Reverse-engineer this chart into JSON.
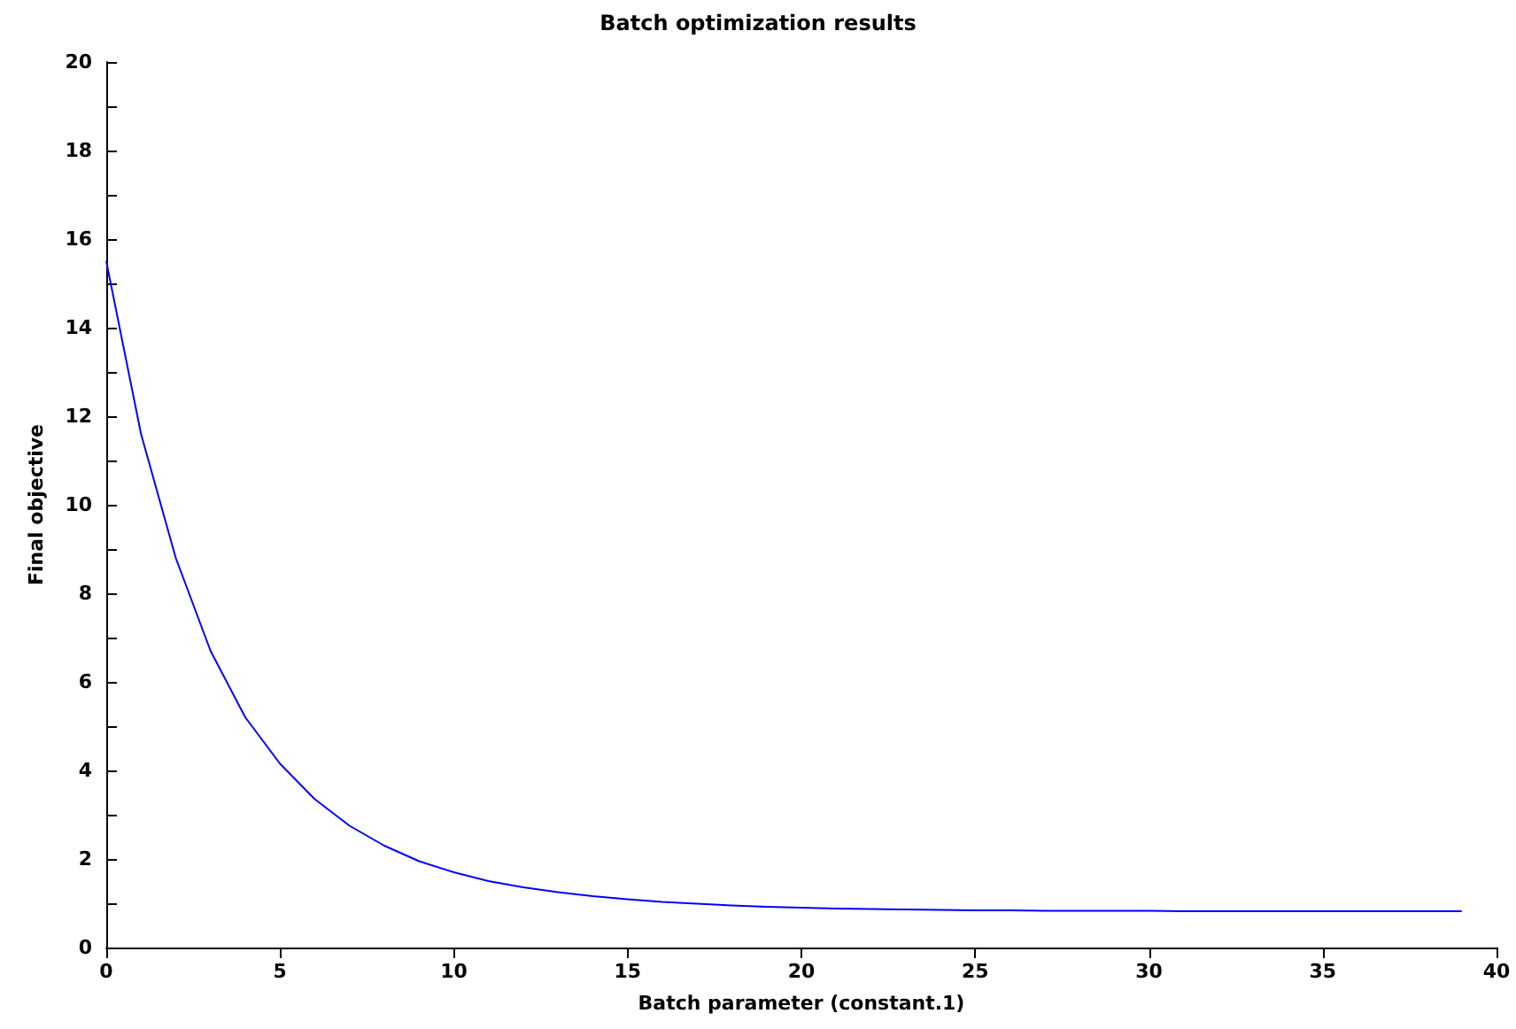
{
  "chart_data": {
    "type": "line",
    "title": "Batch optimization results",
    "xlabel": "Batch parameter (constant.1)",
    "ylabel": "Final objective",
    "x": [
      0,
      1,
      2,
      3,
      4,
      5,
      6,
      7,
      8,
      9,
      10,
      11,
      12,
      13,
      14,
      15,
      16,
      17,
      18,
      19,
      20,
      21,
      22,
      23,
      24,
      25,
      26,
      27,
      28,
      29,
      30,
      31,
      32,
      33,
      34,
      35,
      36,
      37,
      38,
      39
    ],
    "series": [
      {
        "color": "#0000ff",
        "values": [
          15.5,
          11.6,
          8.8,
          6.7,
          5.2,
          4.15,
          3.35,
          2.75,
          2.3,
          1.95,
          1.7,
          1.5,
          1.36,
          1.25,
          1.16,
          1.09,
          1.03,
          0.99,
          0.95,
          0.92,
          0.9,
          0.88,
          0.87,
          0.86,
          0.85,
          0.84,
          0.84,
          0.83,
          0.83,
          0.83,
          0.83,
          0.82,
          0.82,
          0.82,
          0.82,
          0.82,
          0.82,
          0.82,
          0.82,
          0.82
        ]
      }
    ],
    "xlim": [
      0,
      40
    ],
    "xticks": [
      0,
      5,
      10,
      15,
      20,
      25,
      30,
      35,
      40
    ],
    "ylim": [
      0,
      20
    ],
    "yticks": [
      0,
      {
        "value": 1,
        "label": null
      },
      2,
      {
        "value": 3,
        "label": null
      },
      4,
      {
        "value": 5,
        "label": null
      },
      6,
      {
        "value": 7,
        "label": null
      },
      8,
      {
        "value": 9,
        "label": null
      },
      10,
      {
        "value": 11,
        "label": null
      },
      12,
      {
        "value": 13,
        "label": null
      },
      14,
      {
        "value": 15,
        "label": null
      },
      16,
      {
        "value": 17,
        "label": null
      },
      18,
      {
        "value": 19,
        "label": null
      },
      20
    ],
    "grid": false,
    "marker": "none",
    "line_style": "solid"
  }
}
